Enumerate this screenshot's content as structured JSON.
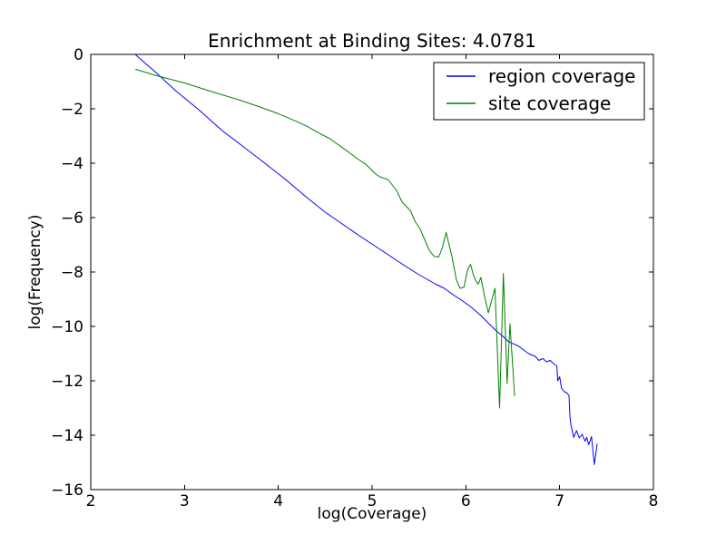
{
  "figure": {
    "background": "#ffffff",
    "frame_color": "#000000"
  },
  "chart_data": {
    "type": "line",
    "title": "Enrichment at Binding Sites: 4.0781",
    "xlabel": "log(Coverage)",
    "ylabel": "log(Frequency)",
    "xlim": [
      2,
      8
    ],
    "ylim": [
      -16,
      0
    ],
    "xticks": [
      2,
      3,
      4,
      5,
      6,
      7,
      8
    ],
    "xtick_labels": [
      "2",
      "3",
      "4",
      "5",
      "6",
      "7",
      "8"
    ],
    "yticks": [
      0,
      -2,
      -4,
      -6,
      -8,
      -10,
      -12,
      -14,
      -16
    ],
    "ytick_labels": [
      "0",
      "−2",
      "−4",
      "−6",
      "−8",
      "−10",
      "−12",
      "−14",
      "−16"
    ],
    "grid": false,
    "legend": {
      "position": "upper right",
      "border_color": "#000000",
      "background": "#ffffff",
      "entries": [
        "region coverage",
        "site coverage"
      ]
    },
    "series": [
      {
        "name": "region coverage",
        "color": "#0000ff",
        "x": [
          2.48,
          2.7,
          2.9,
          3.16,
          3.4,
          3.6,
          3.8,
          4.06,
          4.3,
          4.5,
          4.71,
          4.9,
          5.1,
          5.34,
          5.5,
          5.68,
          5.77,
          5.87,
          5.96,
          6.06,
          6.16,
          6.26,
          6.33,
          6.4,
          6.45,
          6.5,
          6.56,
          6.61,
          6.66,
          6.7,
          6.74,
          6.78,
          6.82,
          6.86,
          6.9,
          6.93,
          6.97,
          6.98,
          7.0,
          7.02,
          7.05,
          7.08,
          7.1,
          7.11,
          7.12,
          7.15,
          7.18,
          7.21,
          7.24,
          7.27,
          7.29,
          7.31,
          7.34,
          7.37,
          7.4
        ],
        "y": [
          -0.02,
          -0.68,
          -1.32,
          -2.06,
          -2.8,
          -3.32,
          -3.85,
          -4.55,
          -5.25,
          -5.8,
          -6.3,
          -6.75,
          -7.2,
          -7.75,
          -8.1,
          -8.45,
          -8.6,
          -8.85,
          -9.05,
          -9.3,
          -9.6,
          -9.95,
          -10.18,
          -10.38,
          -10.55,
          -10.63,
          -10.72,
          -10.85,
          -10.98,
          -11.05,
          -11.1,
          -11.25,
          -11.18,
          -11.3,
          -11.25,
          -11.35,
          -11.45,
          -12.0,
          -11.85,
          -12.27,
          -12.4,
          -12.45,
          -12.55,
          -13.3,
          -13.62,
          -14.08,
          -13.83,
          -14.1,
          -13.97,
          -14.22,
          -14.08,
          -14.35,
          -14.05,
          -15.08,
          -14.33
        ]
      },
      {
        "name": "site coverage",
        "color": "#008000",
        "x": [
          2.48,
          2.7,
          3.0,
          3.3,
          3.58,
          3.8,
          4.0,
          4.13,
          4.3,
          4.42,
          4.55,
          4.71,
          4.85,
          4.93,
          5.03,
          5.08,
          5.17,
          5.26,
          5.32,
          5.41,
          5.46,
          5.51,
          5.56,
          5.61,
          5.66,
          5.71,
          5.75,
          5.79,
          5.85,
          5.9,
          5.94,
          5.98,
          6.02,
          6.05,
          6.08,
          6.11,
          6.13,
          6.16,
          6.2,
          6.24,
          6.31,
          6.36,
          6.4,
          6.44,
          6.47,
          6.52
        ],
        "y": [
          -0.55,
          -0.78,
          -1.05,
          -1.38,
          -1.67,
          -1.93,
          -2.18,
          -2.37,
          -2.63,
          -2.87,
          -3.1,
          -3.49,
          -3.85,
          -4.03,
          -4.37,
          -4.5,
          -4.6,
          -5.0,
          -5.43,
          -5.75,
          -6.15,
          -6.4,
          -6.8,
          -7.2,
          -7.42,
          -7.45,
          -7.1,
          -6.55,
          -7.4,
          -8.3,
          -8.6,
          -8.55,
          -7.9,
          -7.72,
          -8.1,
          -8.35,
          -8.45,
          -8.2,
          -8.9,
          -9.5,
          -8.6,
          -13.0,
          -8.05,
          -12.1,
          -9.9,
          -12.55
        ]
      }
    ]
  }
}
